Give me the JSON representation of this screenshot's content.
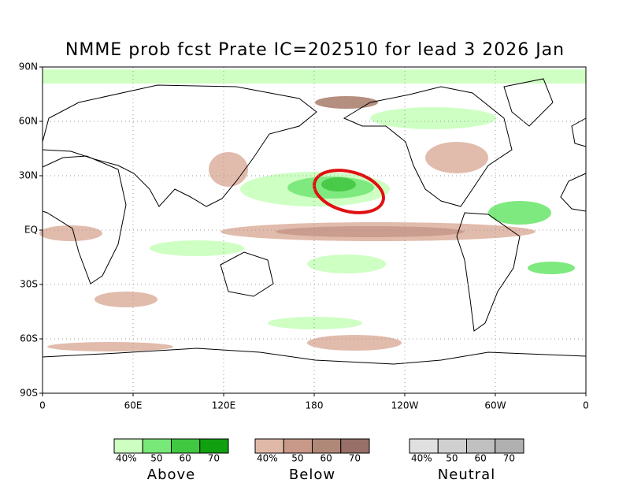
{
  "title": "NMME prob fcst Prate IC=202510 for lead 3 2026 Jan",
  "map": {
    "lat_labels": [
      "90N",
      "60N",
      "30N",
      "EQ",
      "30S",
      "60S",
      "90S"
    ],
    "lon_labels": [
      "0",
      "60E",
      "120E",
      "180",
      "120W",
      "60W",
      "0"
    ]
  },
  "legend": [
    {
      "name": "Above",
      "colors": [
        "#ccffc0",
        "#78e878",
        "#40c840",
        "#10a010"
      ],
      "labels": [
        "40%",
        "50",
        "60",
        "70"
      ]
    },
    {
      "name": "Below",
      "colors": [
        "#e0b8a8",
        "#c89888",
        "#b08878",
        "#987068"
      ],
      "labels": [
        "40%",
        "50",
        "60",
        "70"
      ]
    },
    {
      "name": "Neutral",
      "colors": [
        "#e0e0e0",
        "#d0d0d0",
        "#c0c0c0",
        "#b0b0b0"
      ],
      "labels": [
        "40%",
        "50",
        "60",
        "70"
      ]
    }
  ]
}
